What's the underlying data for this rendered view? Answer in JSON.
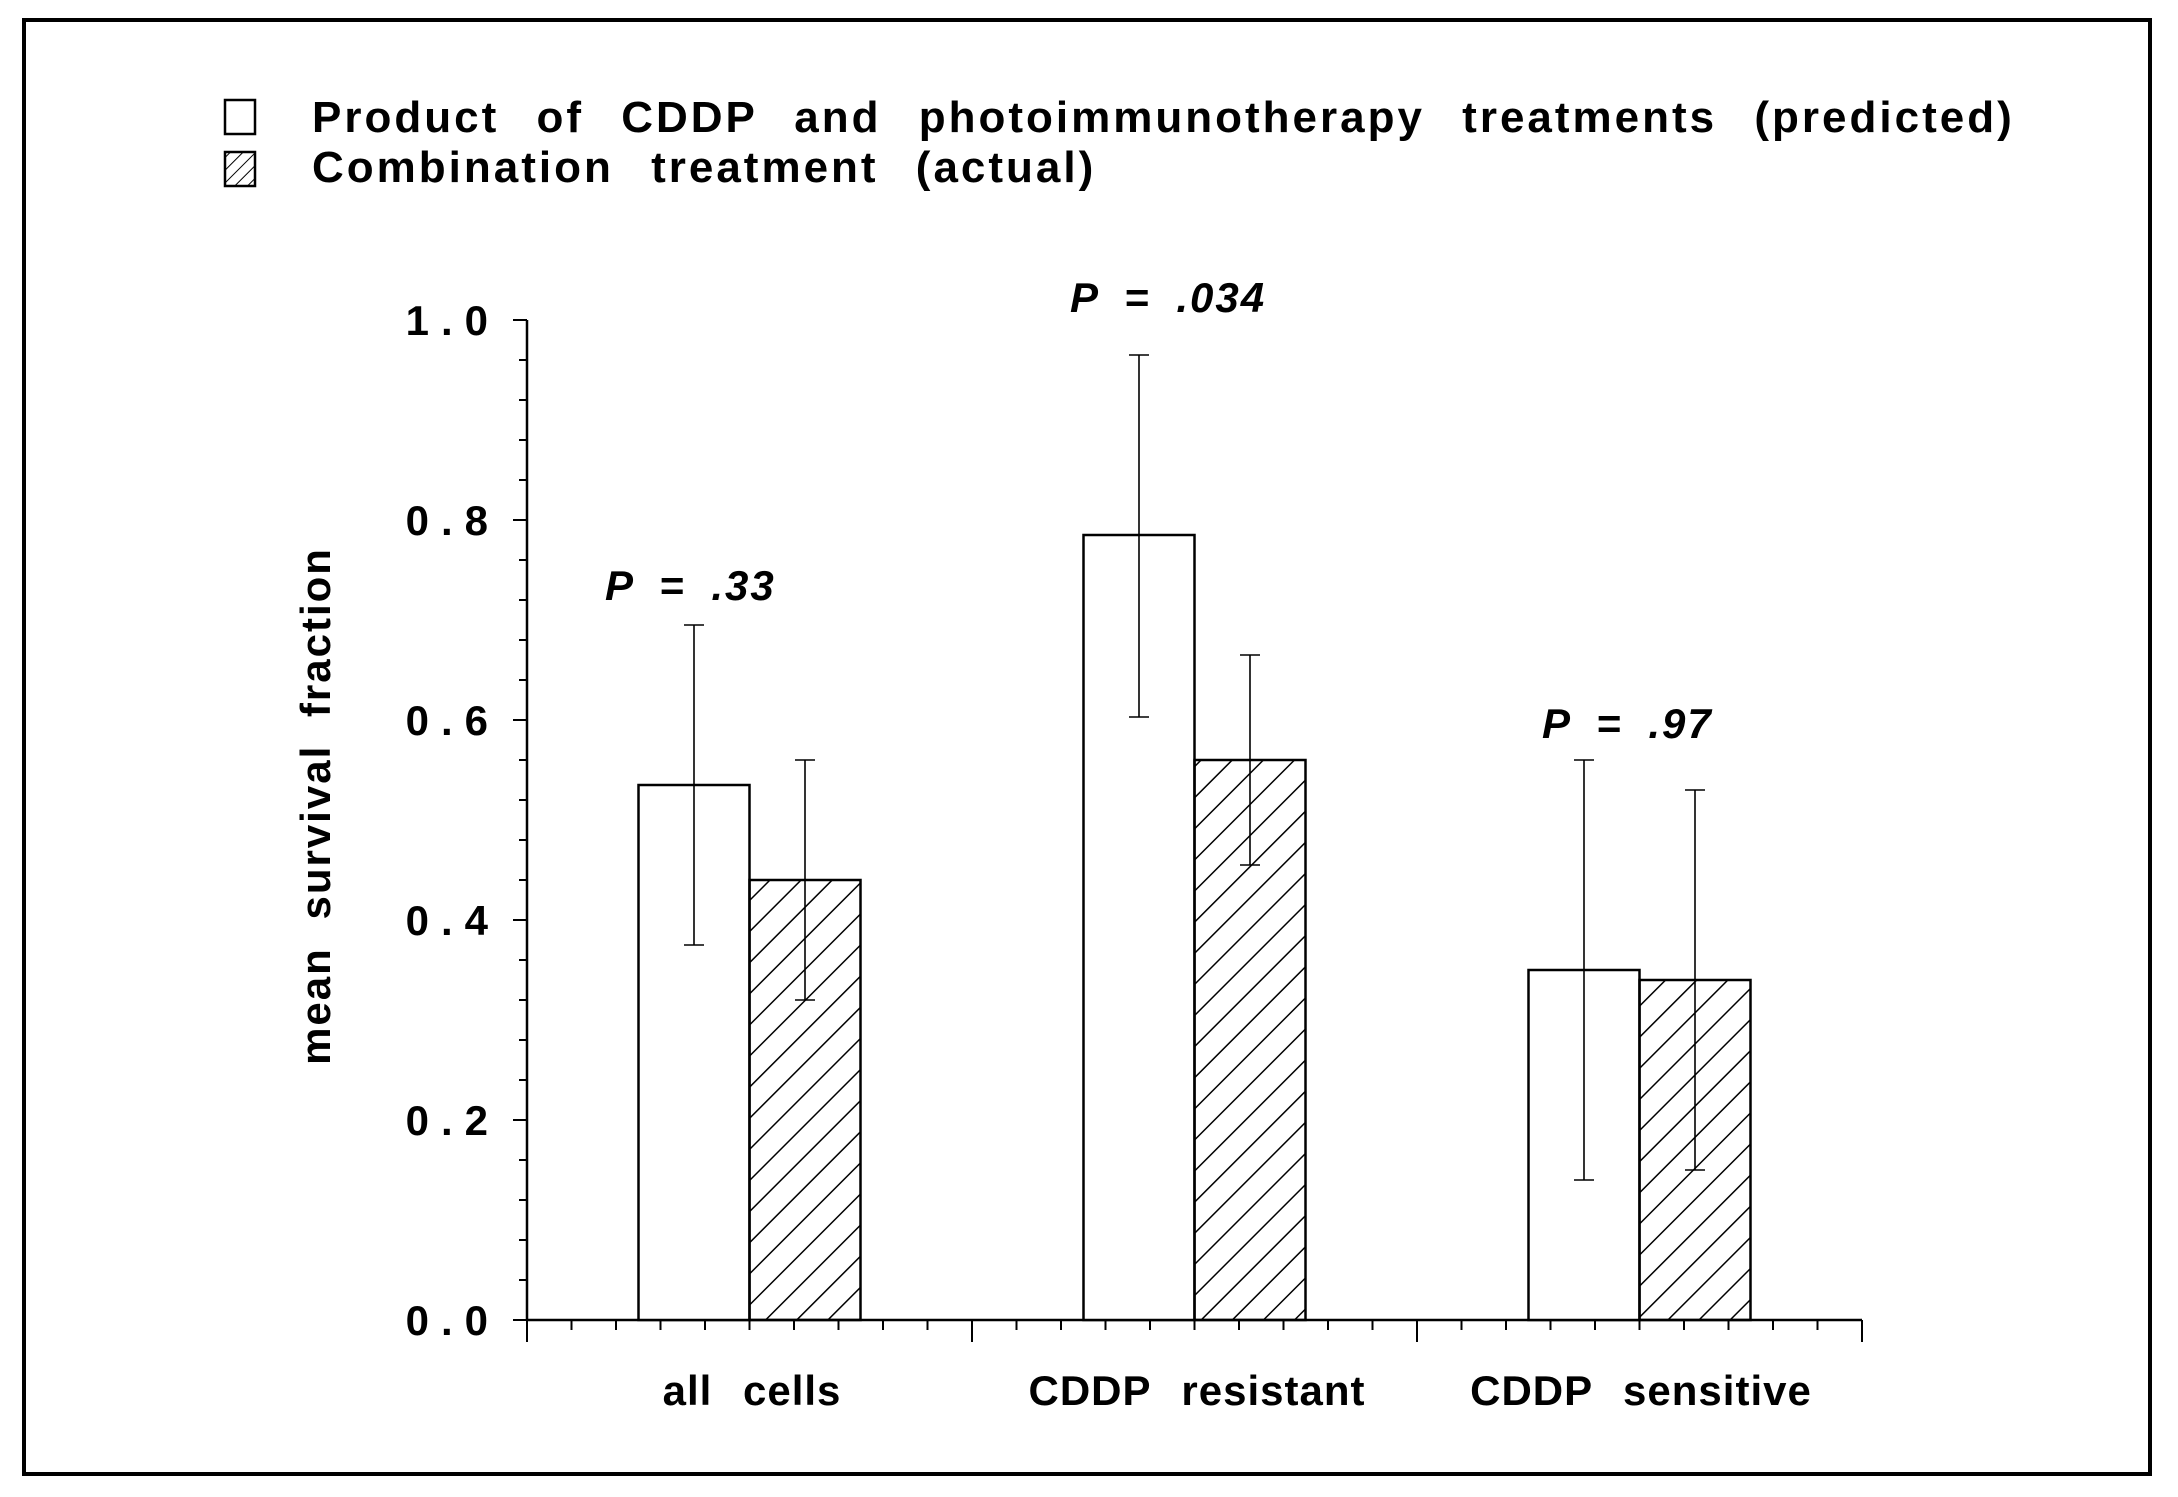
{
  "chart_data": {
    "type": "bar",
    "title": "",
    "xlabel": "",
    "ylabel": "mean survival fraction",
    "ylim": [
      0,
      1.0
    ],
    "yticks": [
      0.0,
      0.2,
      0.4,
      0.6,
      0.8,
      1.0
    ],
    "ytick_labels": [
      "0.0",
      "0.2",
      "0.4",
      "0.6",
      "0.8",
      "1.0"
    ],
    "categories": [
      "all cells",
      "CDDP resistant",
      "CDDP sensitive"
    ],
    "series": [
      {
        "name": "Product of CDDP and photoimmunotherapy treatments (predicted)",
        "pattern": "open",
        "values": [
          0.535,
          0.785,
          0.35
        ],
        "err_low": [
          0.375,
          0.603,
          0.14
        ],
        "err_high": [
          0.695,
          0.965,
          0.56
        ]
      },
      {
        "name": "Combination treatment (actual)",
        "pattern": "hatched",
        "values": [
          0.44,
          0.56,
          0.34
        ],
        "err_low": [
          0.32,
          0.455,
          0.15
        ],
        "err_high": [
          0.56,
          0.665,
          0.53
        ]
      }
    ],
    "annotations": [
      "P = .33",
      "P = .034",
      "P = .97"
    ],
    "grid": false,
    "legend_position": "top-left"
  }
}
